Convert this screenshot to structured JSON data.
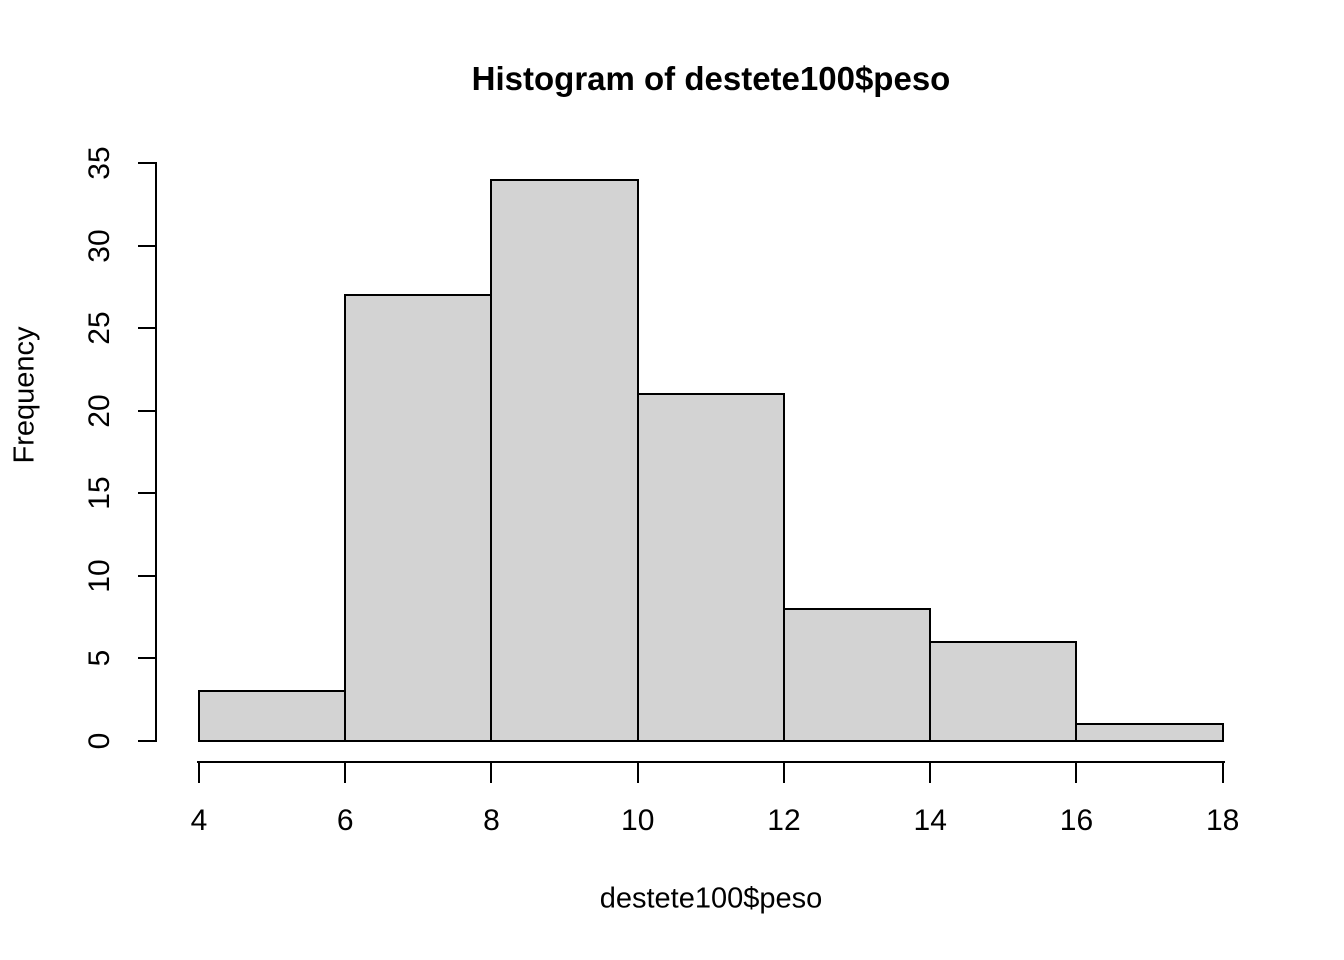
{
  "chart_data": {
    "type": "bar",
    "subtype": "histogram",
    "title": "Histogram of destete100$peso",
    "xlabel": "destete100$peso",
    "ylabel": "Frequency",
    "bin_edges": [
      4,
      6,
      8,
      10,
      12,
      14,
      16,
      18
    ],
    "counts": [
      3,
      27,
      34,
      21,
      8,
      6,
      1
    ],
    "x_ticks": [
      4,
      6,
      8,
      10,
      12,
      14,
      16,
      18
    ],
    "y_ticks": [
      0,
      5,
      10,
      15,
      20,
      25,
      30,
      35
    ],
    "xlim": [
      4,
      18
    ],
    "ylim": [
      0,
      35
    ],
    "grid": false,
    "legend": false,
    "bar_fill_color": "#d3d3d3",
    "bar_border_color": "#000000",
    "axis_color": "#000000",
    "text_color": "#000000",
    "background_color": "#ffffff"
  }
}
